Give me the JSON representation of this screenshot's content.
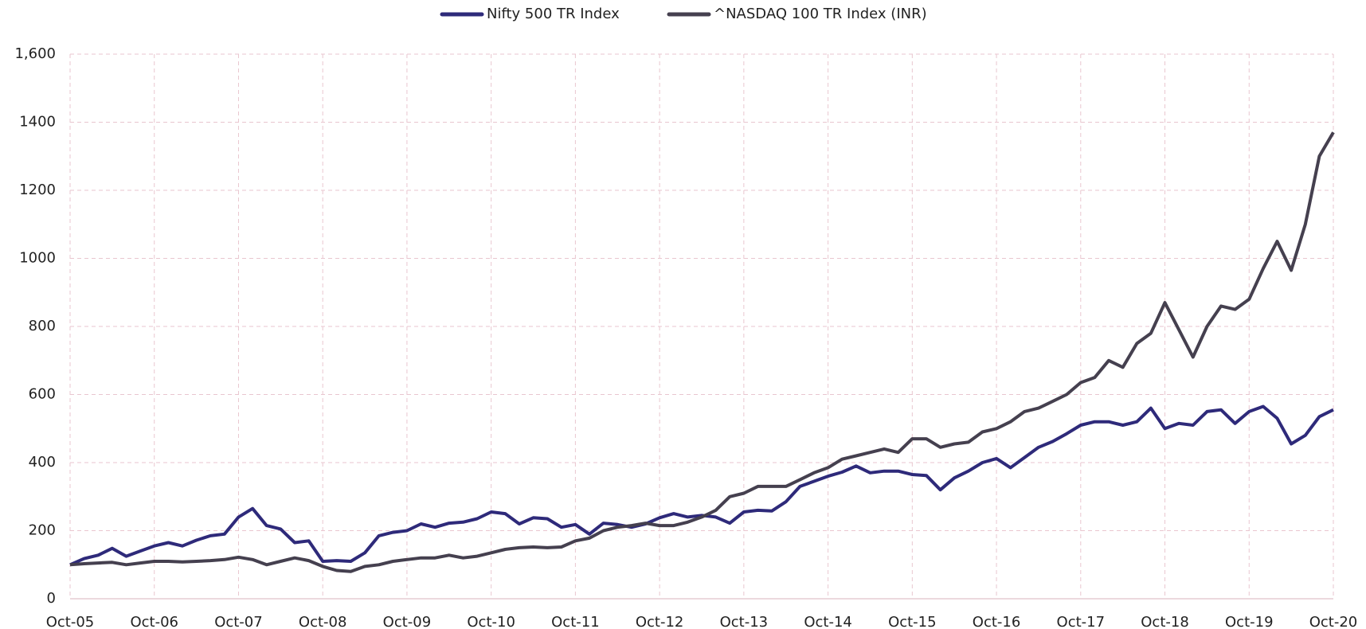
{
  "chart_data": {
    "type": "line",
    "categories": [
      "Oct-05",
      null,
      null,
      null,
      null,
      null,
      "Oct-06",
      null,
      null,
      null,
      null,
      null,
      "Oct-07",
      null,
      null,
      null,
      null,
      null,
      "Oct-08",
      null,
      null,
      null,
      null,
      null,
      "Oct-09",
      null,
      null,
      null,
      null,
      null,
      "Oct-10",
      null,
      null,
      null,
      null,
      null,
      "Oct-11",
      null,
      null,
      null,
      null,
      null,
      "Oct-12",
      null,
      null,
      null,
      null,
      null,
      "Oct-13",
      null,
      null,
      null,
      null,
      null,
      "Oct-14",
      null,
      null,
      null,
      null,
      null,
      "Oct-15",
      null,
      null,
      null,
      null,
      null,
      "Oct-16",
      null,
      null,
      null,
      null,
      null,
      "Oct-17",
      null,
      null,
      null,
      null,
      null,
      "Oct-18",
      null,
      null,
      null,
      null,
      null,
      "Oct-19",
      null,
      null,
      null,
      null,
      null,
      "Oct-20"
    ],
    "series": [
      {
        "name": "Nifty 500 TR Index",
        "color": "#2e2a7a",
        "values": [
          100,
          118,
          128,
          148,
          125,
          140,
          155,
          165,
          155,
          172,
          185,
          190,
          240,
          265,
          215,
          205,
          165,
          170,
          110,
          112,
          110,
          135,
          185,
          195,
          200,
          220,
          210,
          222,
          225,
          235,
          255,
          250,
          220,
          238,
          235,
          210,
          218,
          190,
          222,
          218,
          210,
          220,
          238,
          250,
          240,
          245,
          240,
          222,
          255,
          260,
          258,
          285,
          330,
          345,
          360,
          372,
          390,
          370,
          375,
          375,
          365,
          362,
          320,
          355,
          375,
          400,
          412,
          385,
          415,
          445,
          462,
          485,
          510,
          520,
          520,
          510,
          520,
          560,
          500,
          515,
          510,
          550,
          555,
          515,
          550,
          565,
          530,
          455,
          480,
          535,
          555
        ]
      },
      {
        "name": "^NASDAQ 100 TR Index (INR)",
        "color": "#45404f",
        "values": [
          100,
          103,
          105,
          107,
          100,
          105,
          110,
          110,
          108,
          110,
          112,
          115,
          122,
          115,
          100,
          110,
          120,
          112,
          95,
          83,
          80,
          95,
          100,
          110,
          115,
          120,
          120,
          128,
          120,
          125,
          135,
          145,
          150,
          152,
          150,
          152,
          170,
          178,
          200,
          210,
          215,
          222,
          215,
          215,
          225,
          240,
          260,
          300,
          310,
          330,
          330,
          330,
          350,
          370,
          385,
          410,
          420,
          430,
          440,
          430,
          470,
          470,
          445,
          455,
          460,
          490,
          500,
          520,
          550,
          560,
          580,
          600,
          635,
          650,
          700,
          680,
          750,
          780,
          870,
          790,
          710,
          800,
          860,
          850,
          880,
          970,
          1050,
          965,
          1100,
          1300,
          1370
        ]
      }
    ],
    "ylim": [
      0,
      1600
    ],
    "yticks": [
      0,
      200,
      400,
      600,
      800,
      1000,
      1200,
      1400,
      {
        "value": 1600,
        "label": "1,600"
      }
    ],
    "grid": true,
    "legend": "top"
  }
}
